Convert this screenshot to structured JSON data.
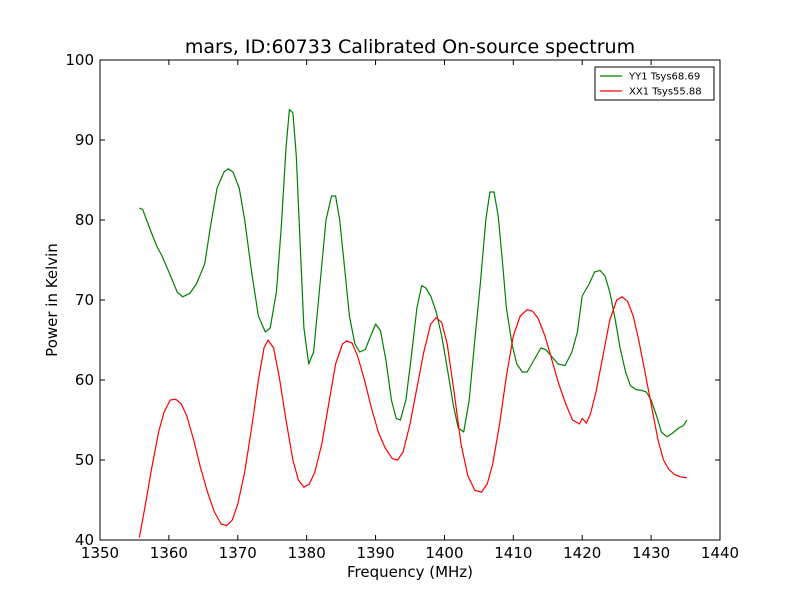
{
  "chart_data": {
    "type": "line",
    "title": "mars, ID:60733 Calibrated On-source spectrum",
    "xlabel": "Frequency (MHz)",
    "ylabel": "Power in Kelvin",
    "xlim": [
      1350,
      1440
    ],
    "ylim": [
      40,
      100
    ],
    "xticks": [
      "1350",
      "1360",
      "1370",
      "1380",
      "1390",
      "1400",
      "1410",
      "1420",
      "1430",
      "1440"
    ],
    "yticks": [
      "40",
      "50",
      "60",
      "70",
      "80",
      "90",
      "100"
    ],
    "grid": false,
    "legend_position": "top-right",
    "series": [
      {
        "name": "YY1 Tsys68.69",
        "color": "#008000",
        "x": [
          1355.7,
          1356.2,
          1357.2,
          1358.2,
          1359.0,
          1360.0,
          1361.2,
          1362.0,
          1363.0,
          1364.0,
          1365.2,
          1366.0,
          1367.0,
          1368.0,
          1368.6,
          1369.3,
          1370.2,
          1371.0,
          1372.0,
          1373.0,
          1374.0,
          1374.7,
          1375.6,
          1376.3,
          1377.0,
          1377.5,
          1378.0,
          1378.5,
          1379.0,
          1379.6,
          1380.3,
          1381.0,
          1382.0,
          1382.8,
          1383.6,
          1384.2,
          1384.8,
          1385.5,
          1386.2,
          1387.0,
          1387.7,
          1388.5,
          1389.3,
          1390.0,
          1390.7,
          1391.5,
          1392.3,
          1393.0,
          1393.6,
          1394.4,
          1395.2,
          1396.0,
          1396.7,
          1397.3,
          1398.0,
          1398.8,
          1399.6,
          1400.5,
          1401.3,
          1402.0,
          1402.8,
          1403.6,
          1404.4,
          1405.2,
          1406.0,
          1406.6,
          1407.2,
          1407.8,
          1408.4,
          1409.0,
          1409.8,
          1410.5,
          1411.3,
          1412.0,
          1413.0,
          1414.0,
          1414.7,
          1415.5,
          1416.5,
          1417.5,
          1418.5,
          1419.3,
          1420.0,
          1421.0,
          1421.8,
          1422.6,
          1423.3,
          1424.0,
          1424.8,
          1425.5,
          1426.3,
          1427.0,
          1427.8,
          1428.6,
          1429.3,
          1430.0,
          1430.8,
          1431.5,
          1432.3,
          1433.0,
          1434.0,
          1434.7,
          1435.2
        ],
        "y": [
          81.5,
          81.3,
          79.0,
          76.8,
          75.5,
          73.5,
          71.0,
          70.4,
          70.8,
          72.0,
          74.5,
          79.0,
          84.0,
          86.0,
          86.4,
          86.0,
          84.0,
          80.0,
          73.5,
          68.0,
          66.0,
          66.5,
          71.0,
          79.0,
          89.0,
          93.8,
          93.4,
          88.0,
          78.0,
          66.5,
          62.0,
          63.5,
          72.5,
          80.0,
          83.0,
          83.0,
          80.0,
          74.0,
          68.0,
          64.5,
          63.5,
          63.8,
          65.5,
          67.0,
          66.2,
          62.5,
          57.5,
          55.2,
          55.0,
          57.5,
          63.0,
          69.0,
          71.8,
          71.5,
          70.5,
          68.5,
          65.5,
          61.0,
          56.8,
          54.0,
          53.5,
          57.5,
          65.0,
          72.0,
          80.0,
          83.5,
          83.5,
          80.5,
          75.0,
          69.0,
          64.5,
          62.0,
          61.0,
          61.0,
          62.5,
          64.0,
          63.8,
          63.0,
          62.0,
          61.8,
          63.5,
          66.0,
          70.5,
          72.0,
          73.5,
          73.7,
          73.0,
          71.0,
          67.5,
          64.0,
          61.0,
          59.3,
          58.8,
          58.7,
          58.5,
          57.5,
          55.5,
          53.5,
          52.9,
          53.3,
          54.0,
          54.3,
          55.0
        ]
      },
      {
        "name": "XX1 Tsys55.88",
        "color": "#ff0000",
        "x": [
          1355.7,
          1356.5,
          1357.5,
          1358.5,
          1359.3,
          1360.2,
          1361.0,
          1361.8,
          1362.6,
          1363.6,
          1364.6,
          1365.6,
          1366.6,
          1367.6,
          1368.4,
          1369.2,
          1370.0,
          1371.0,
          1372.0,
          1373.0,
          1373.8,
          1374.4,
          1375.2,
          1376.0,
          1377.0,
          1378.0,
          1378.8,
          1379.6,
          1380.4,
          1381.2,
          1382.2,
          1383.2,
          1384.2,
          1385.2,
          1385.8,
          1386.6,
          1387.4,
          1388.4,
          1389.4,
          1390.4,
          1391.4,
          1392.4,
          1393.2,
          1394.0,
          1395.0,
          1396.0,
          1397.0,
          1398.0,
          1398.8,
          1399.6,
          1400.4,
          1401.4,
          1402.4,
          1403.4,
          1404.4,
          1405.4,
          1406.2,
          1407.0,
          1408.0,
          1409.0,
          1410.0,
          1411.0,
          1412.0,
          1412.8,
          1413.6,
          1414.6,
          1415.6,
          1416.6,
          1417.6,
          1418.6,
          1419.6,
          1420.0,
          1420.6,
          1421.2,
          1422.0,
          1423.0,
          1424.0,
          1425.0,
          1425.8,
          1426.6,
          1427.4,
          1428.2,
          1429.0,
          1430.0,
          1431.0,
          1431.8,
          1432.6,
          1433.4,
          1434.2,
          1435.2
        ],
        "y": [
          40.3,
          44.0,
          49.0,
          53.5,
          56.0,
          57.5,
          57.6,
          57.0,
          55.5,
          52.5,
          49.0,
          46.0,
          43.5,
          42.0,
          41.8,
          42.5,
          44.5,
          48.5,
          54.0,
          60.0,
          64.0,
          65.0,
          64.0,
          60.5,
          55.0,
          50.0,
          47.5,
          46.6,
          47.0,
          48.5,
          52.0,
          57.0,
          62.0,
          64.5,
          64.9,
          64.6,
          63.0,
          60.0,
          56.5,
          53.5,
          51.5,
          50.2,
          50.0,
          51.0,
          54.5,
          59.0,
          63.5,
          67.0,
          67.8,
          67.2,
          64.5,
          58.5,
          52.0,
          48.0,
          46.2,
          46.0,
          47.0,
          49.5,
          54.5,
          60.5,
          65.5,
          68.0,
          68.8,
          68.6,
          67.7,
          65.5,
          62.5,
          59.5,
          57.0,
          55.0,
          54.5,
          55.2,
          54.6,
          55.8,
          58.5,
          63.0,
          67.5,
          70.0,
          70.4,
          69.8,
          68.0,
          65.0,
          61.5,
          57.0,
          52.5,
          50.0,
          48.8,
          48.2,
          47.9,
          47.8
        ]
      }
    ]
  }
}
